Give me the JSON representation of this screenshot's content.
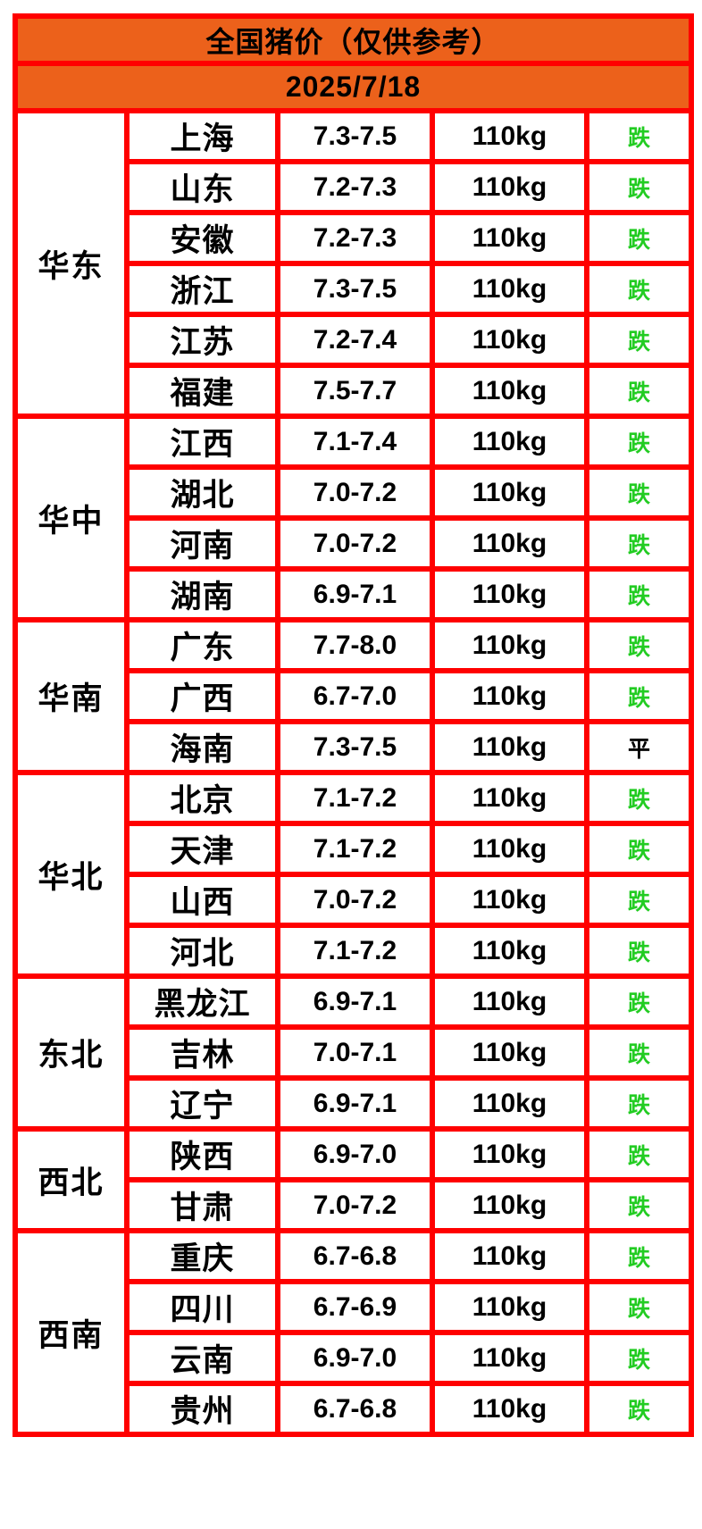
{
  "page": {
    "background": "#FFFFFF"
  },
  "table": {
    "title": "全国猪价（仅供参考）",
    "date": "2025/7/18",
    "colors": {
      "header_bg": "#EC611B",
      "border": "#FF0000",
      "cell_bg": "#FFFFFF",
      "text": "#000000",
      "trend_down": "#22CC22",
      "trend_flat": "#000000"
    },
    "regions": [
      {
        "name": "华东",
        "rows": [
          {
            "province": "上海",
            "price": "7.3-7.5",
            "weight": "110kg",
            "status": "跌",
            "trend": "down"
          },
          {
            "province": "山东",
            "price": "7.2-7.3",
            "weight": "110kg",
            "status": "跌",
            "trend": "down"
          },
          {
            "province": "安徽",
            "price": "7.2-7.3",
            "weight": "110kg",
            "status": "跌",
            "trend": "down"
          },
          {
            "province": "浙江",
            "price": "7.3-7.5",
            "weight": "110kg",
            "status": "跌",
            "trend": "down"
          },
          {
            "province": "江苏",
            "price": "7.2-7.4",
            "weight": "110kg",
            "status": "跌",
            "trend": "down"
          },
          {
            "province": "福建",
            "price": "7.5-7.7",
            "weight": "110kg",
            "status": "跌",
            "trend": "down"
          }
        ]
      },
      {
        "name": "华中",
        "rows": [
          {
            "province": "江西",
            "price": "7.1-7.4",
            "weight": "110kg",
            "status": "跌",
            "trend": "down"
          },
          {
            "province": "湖北",
            "price": "7.0-7.2",
            "weight": "110kg",
            "status": "跌",
            "trend": "down"
          },
          {
            "province": "河南",
            "price": "7.0-7.2",
            "weight": "110kg",
            "status": "跌",
            "trend": "down"
          },
          {
            "province": "湖南",
            "price": "6.9-7.1",
            "weight": "110kg",
            "status": "跌",
            "trend": "down"
          }
        ]
      },
      {
        "name": "华南",
        "rows": [
          {
            "province": "广东",
            "price": "7.7-8.0",
            "weight": "110kg",
            "status": "跌",
            "trend": "down"
          },
          {
            "province": "广西",
            "price": "6.7-7.0",
            "weight": "110kg",
            "status": "跌",
            "trend": "down"
          },
          {
            "province": "海南",
            "price": "7.3-7.5",
            "weight": "110kg",
            "status": "平",
            "trend": "flat"
          }
        ]
      },
      {
        "name": "华北",
        "rows": [
          {
            "province": "北京",
            "price": "7.1-7.2",
            "weight": "110kg",
            "status": "跌",
            "trend": "down"
          },
          {
            "province": "天津",
            "price": "7.1-7.2",
            "weight": "110kg",
            "status": "跌",
            "trend": "down"
          },
          {
            "province": "山西",
            "price": "7.0-7.2",
            "weight": "110kg",
            "status": "跌",
            "trend": "down"
          },
          {
            "province": "河北",
            "price": "7.1-7.2",
            "weight": "110kg",
            "status": "跌",
            "trend": "down"
          }
        ]
      },
      {
        "name": "东北",
        "rows": [
          {
            "province": "黑龙江",
            "price": "6.9-7.1",
            "weight": "110kg",
            "status": "跌",
            "trend": "down"
          },
          {
            "province": "吉林",
            "price": "7.0-7.1",
            "weight": "110kg",
            "status": "跌",
            "trend": "down"
          },
          {
            "province": "辽宁",
            "price": "6.9-7.1",
            "weight": "110kg",
            "status": "跌",
            "trend": "down"
          }
        ]
      },
      {
        "name": "西北",
        "rows": [
          {
            "province": "陕西",
            "price": "6.9-7.0",
            "weight": "110kg",
            "status": "跌",
            "trend": "down"
          },
          {
            "province": "甘肃",
            "price": "7.0-7.2",
            "weight": "110kg",
            "status": "跌",
            "trend": "down"
          }
        ]
      },
      {
        "name": "西南",
        "rows": [
          {
            "province": "重庆",
            "price": "6.7-6.8",
            "weight": "110kg",
            "status": "跌",
            "trend": "down"
          },
          {
            "province": "四川",
            "price": "6.7-6.9",
            "weight": "110kg",
            "status": "跌",
            "trend": "down"
          },
          {
            "province": "云南",
            "price": "6.9-7.0",
            "weight": "110kg",
            "status": "跌",
            "trend": "down"
          },
          {
            "province": "贵州",
            "price": "6.7-6.8",
            "weight": "110kg",
            "status": "跌",
            "trend": "down"
          }
        ]
      }
    ]
  },
  "chart_data": {
    "type": "table",
    "title": "全国猪价（仅供参考）",
    "subtitle": "2025/7/18",
    "columns": [
      "region",
      "province",
      "price_range",
      "weight",
      "trend"
    ],
    "rows": [
      [
        "华东",
        "上海",
        "7.3-7.5",
        "110kg",
        "跌"
      ],
      [
        "华东",
        "山东",
        "7.2-7.3",
        "110kg",
        "跌"
      ],
      [
        "华东",
        "安徽",
        "7.2-7.3",
        "110kg",
        "跌"
      ],
      [
        "华东",
        "浙江",
        "7.3-7.5",
        "110kg",
        "跌"
      ],
      [
        "华东",
        "江苏",
        "7.2-7.4",
        "110kg",
        "跌"
      ],
      [
        "华东",
        "福建",
        "7.5-7.7",
        "110kg",
        "跌"
      ],
      [
        "华中",
        "江西",
        "7.1-7.4",
        "110kg",
        "跌"
      ],
      [
        "华中",
        "湖北",
        "7.0-7.2",
        "110kg",
        "跌"
      ],
      [
        "华中",
        "河南",
        "7.0-7.2",
        "110kg",
        "跌"
      ],
      [
        "华中",
        "湖南",
        "6.9-7.1",
        "110kg",
        "跌"
      ],
      [
        "华南",
        "广东",
        "7.7-8.0",
        "110kg",
        "跌"
      ],
      [
        "华南",
        "广西",
        "6.7-7.0",
        "110kg",
        "跌"
      ],
      [
        "华南",
        "海南",
        "7.3-7.5",
        "110kg",
        "平"
      ],
      [
        "华北",
        "北京",
        "7.1-7.2",
        "110kg",
        "跌"
      ],
      [
        "华北",
        "天津",
        "7.1-7.2",
        "110kg",
        "跌"
      ],
      [
        "华北",
        "山西",
        "7.0-7.2",
        "110kg",
        "跌"
      ],
      [
        "华北",
        "河北",
        "7.1-7.2",
        "110kg",
        "跌"
      ],
      [
        "东北",
        "黑龙江",
        "6.9-7.1",
        "110kg",
        "跌"
      ],
      [
        "东北",
        "吉林",
        "7.0-7.1",
        "110kg",
        "跌"
      ],
      [
        "东北",
        "辽宁",
        "6.9-7.1",
        "110kg",
        "跌"
      ],
      [
        "西北",
        "陕西",
        "6.9-7.0",
        "110kg",
        "跌"
      ],
      [
        "西北",
        "甘肃",
        "7.0-7.2",
        "110kg",
        "跌"
      ],
      [
        "西南",
        "重庆",
        "6.7-6.8",
        "110kg",
        "跌"
      ],
      [
        "西南",
        "四川",
        "6.7-6.9",
        "110kg",
        "跌"
      ],
      [
        "西南",
        "云南",
        "6.9-7.0",
        "110kg",
        "跌"
      ],
      [
        "西南",
        "贵州",
        "6.7-6.8",
        "110kg",
        "跌"
      ]
    ]
  }
}
